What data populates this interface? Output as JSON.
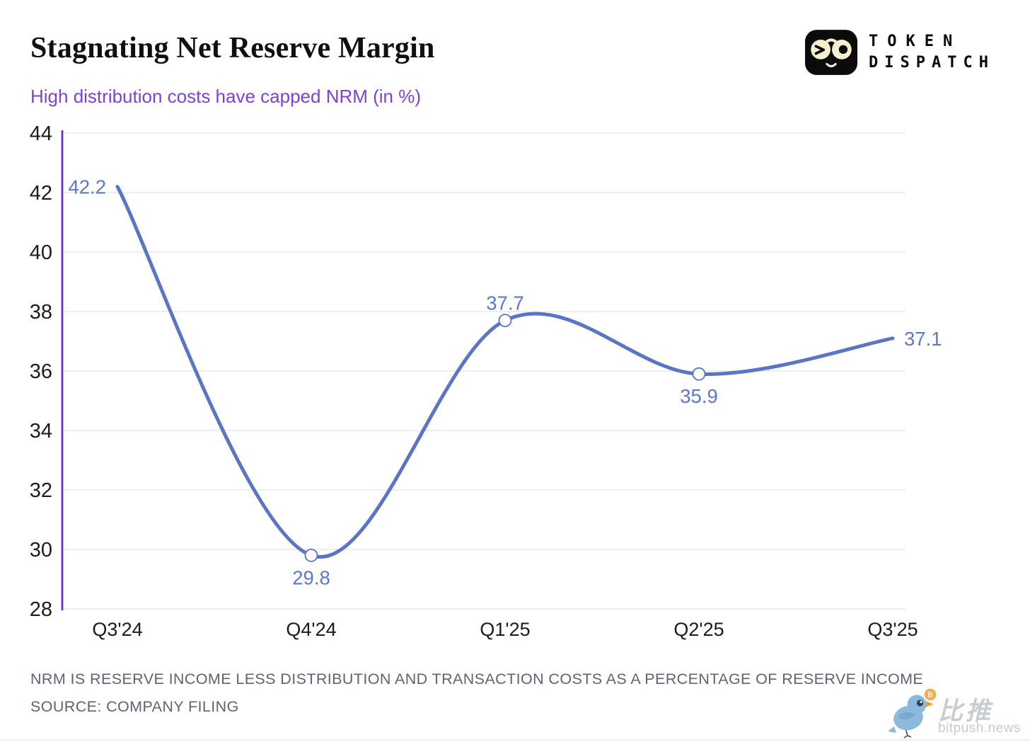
{
  "page": {
    "title": "Stagnating Net Reserve Margin",
    "subtitle": "High distribution costs have capped NRM (in %)"
  },
  "brand": {
    "line1": "TOKEN",
    "line2": "DISPATCH"
  },
  "chart_data": {
    "type": "line",
    "title": "Stagnating Net Reserve Margin",
    "subtitle": "High distribution costs have capped NRM (in %)",
    "categories": [
      "Q3'24",
      "Q4'24",
      "Q1'25",
      "Q2'25",
      "Q3'25"
    ],
    "values": [
      42.2,
      29.8,
      37.7,
      35.9,
      37.1
    ],
    "xlabel": "",
    "ylabel": "",
    "ylim": [
      28,
      44
    ],
    "yticks": [
      28,
      30,
      32,
      34,
      36,
      38,
      40,
      42,
      44
    ],
    "grid": true,
    "legend": false,
    "smooth": true,
    "line_color": "#5b74c4",
    "label_color": "#5d78c8",
    "axis_color": "#6527cd",
    "grid_color": "#e8e9ec",
    "tick_color": "#1b1c1e",
    "marker_indices": [
      1,
      2,
      3
    ],
    "label_positions": [
      "left",
      "below",
      "above",
      "below",
      "right"
    ]
  },
  "footer": {
    "note": "NRM IS RESERVE INCOME LESS DISTRIBUTION AND TRANSACTION COSTS AS A PERCENTAGE OF RESERVE INCOME",
    "source": "SOURCE: COMPANY FILING"
  },
  "watermark": {
    "name_cn": "比推",
    "site": "bitpush.news"
  }
}
